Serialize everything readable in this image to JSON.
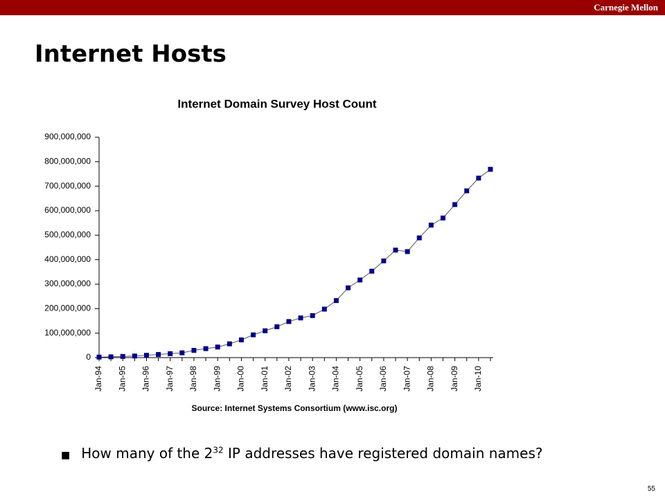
{
  "header": {
    "brand": "Carnegie Mellon"
  },
  "title": "Internet Hosts",
  "chart_data": {
    "type": "line",
    "title": "Internet Domain Survey Host Count",
    "source": "Source: Internet Systems Consortium (www.isc.org)",
    "categories": [
      "Jan-94",
      null,
      "Jan-95",
      null,
      "Jan-96",
      null,
      "Jan-97",
      null,
      "Jan-98",
      null,
      "Jan-99",
      null,
      "Jan-00",
      null,
      "Jan-01",
      null,
      "Jan-02",
      null,
      "Jan-03",
      null,
      "Jan-04",
      null,
      "Jan-05",
      null,
      "Jan-06",
      null,
      "Jan-07",
      null,
      "Jan-08",
      null,
      "Jan-09",
      null,
      "Jan-10",
      null
    ],
    "series": [
      {
        "name": "Host Count",
        "color": "#00008b",
        "line_color": "#555555",
        "values": [
          2200000,
          3200000,
          4900000,
          6600000,
          9500000,
          12900000,
          16100000,
          19500000,
          29700000,
          36700000,
          43200000,
          56200000,
          72400000,
          93000000,
          109600000,
          125900000,
          147300000,
          162100000,
          171600000,
          198000000,
          233000000,
          285000000,
          317000000,
          353000000,
          395000000,
          439000000,
          433000000,
          489000000,
          541000000,
          570000000,
          625000000,
          681000000,
          733000000,
          769000000
        ]
      }
    ],
    "ylim": [
      0,
      900000000
    ],
    "yticks": [
      0,
      {
        "value": 100000000,
        "label": "100,000,000"
      },
      {
        "value": 200000000,
        "label": "200,000,000"
      },
      {
        "value": 300000000,
        "label": "300,000,000"
      },
      {
        "value": 400000000,
        "label": "400,000,000"
      },
      {
        "value": 500000000,
        "label": "500,000,000"
      },
      {
        "value": 600000000,
        "label": "600,000,000"
      },
      {
        "value": 700000000,
        "label": "700,000,000"
      },
      {
        "value": 800000000,
        "label": "800,000,000"
      },
      {
        "value": 900000000,
        "label": "900,000,000"
      }
    ],
    "grid": false
  },
  "bullet": {
    "before": "How many of the 2",
    "sup": "32",
    "after": " IP addresses have registered domain names?"
  },
  "page_number": "55"
}
